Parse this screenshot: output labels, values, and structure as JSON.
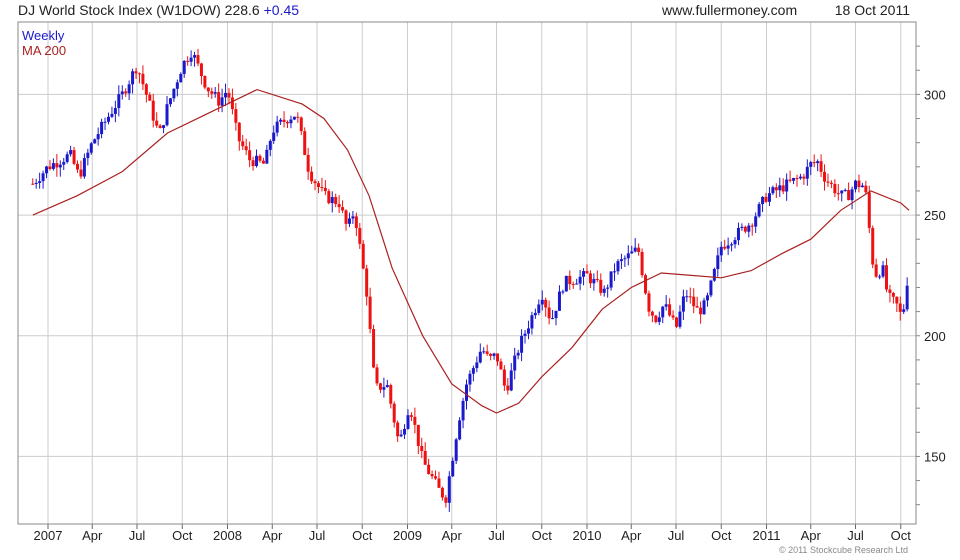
{
  "header": {
    "title": "DJ World Stock Index (W1DOW)",
    "last": "228.6",
    "change": "+0.45",
    "site": "www.fullermoney.com",
    "date": "18 Oct 2011"
  },
  "footer": {
    "copyright": "© 2011 Stockcube Research Ltd"
  },
  "colors": {
    "up": "#1a1acc",
    "down": "#ee1111",
    "ma": "#aa2222",
    "grid": "#cccccc"
  },
  "chart_data": {
    "type": "candlestick",
    "legend": [
      {
        "label": "Weekly",
        "color": "#1a1acc"
      },
      {
        "label": "MA 200",
        "color": "#aa2222"
      }
    ],
    "ylim": [
      122,
      330
    ],
    "y_ticks": [
      150,
      200,
      250,
      300
    ],
    "x_labels": [
      "2007",
      "Apr",
      "Jul",
      "Oct",
      "2008",
      "Apr",
      "Jul",
      "Oct",
      "2009",
      "Apr",
      "Jul",
      "Oct",
      "2010",
      "Apr",
      "Jul",
      "Oct",
      "2011",
      "Apr",
      "Jul",
      "Oct"
    ],
    "grid": true,
    "y_axis_side": "right",
    "series": [
      {
        "name": "Weekly",
        "kind": "ohlc_close_path",
        "x": [
          "2006-12-01",
          "2007-01-01",
          "2007-02-15",
          "2007-03-05",
          "2007-04-01",
          "2007-05-01",
          "2007-06-01",
          "2007-07-01",
          "2007-07-20",
          "2007-08-15",
          "2007-09-01",
          "2007-10-01",
          "2007-10-20",
          "2007-11-20",
          "2007-12-15",
          "2008-01-01",
          "2008-01-22",
          "2008-02-15",
          "2008-03-17",
          "2008-04-01",
          "2008-05-01",
          "2008-05-20",
          "2008-06-15",
          "2008-07-15",
          "2008-08-15",
          "2008-09-01",
          "2008-09-15",
          "2008-10-01",
          "2008-10-10",
          "2008-10-27",
          "2008-11-20",
          "2008-12-15",
          "2009-01-05",
          "2009-02-01",
          "2009-03-09",
          "2009-03-20",
          "2009-04-15",
          "2009-05-01",
          "2009-06-01",
          "2009-06-15",
          "2009-07-01",
          "2009-07-20",
          "2009-08-15",
          "2009-09-15",
          "2009-10-01",
          "2009-10-20",
          "2009-11-15",
          "2010-01-01",
          "2010-02-05",
          "2010-03-01",
          "2010-04-15",
          "2010-05-06",
          "2010-05-20",
          "2010-06-07",
          "2010-07-01",
          "2010-07-20",
          "2010-08-15",
          "2010-08-31",
          "2010-10-01",
          "2010-11-01",
          "2010-12-01",
          "2011-01-01",
          "2011-02-15",
          "2011-03-15",
          "2011-04-01",
          "2011-04-15",
          "2011-05-01",
          "2011-06-01",
          "2011-06-15",
          "2011-07-01",
          "2011-07-20",
          "2011-08-08",
          "2011-08-25",
          "2011-09-05",
          "2011-09-22",
          "2011-10-04",
          "2011-10-18"
        ],
        "close": [
          263,
          270,
          275,
          266,
          280,
          290,
          300,
          312,
          300,
          283,
          295,
          312,
          318,
          303,
          297,
          302,
          282,
          273,
          271,
          285,
          290,
          292,
          268,
          258,
          255,
          244,
          252,
          230,
          218,
          178,
          180,
          155,
          172,
          148,
          135,
          133,
          165,
          180,
          195,
          190,
          192,
          177,
          195,
          210,
          218,
          206,
          222,
          225,
          218,
          229,
          236,
          212,
          207,
          213,
          203,
          218,
          210,
          213,
          237,
          242,
          247,
          258,
          263,
          266,
          271,
          272,
          265,
          258,
          258,
          263,
          262,
          225,
          228,
          216,
          213,
          207,
          229
        ]
      },
      {
        "name": "MA 200",
        "kind": "line",
        "x": [
          "2006-12-01",
          "2007-03-01",
          "2007-06-01",
          "2007-09-01",
          "2007-12-01",
          "2008-03-01",
          "2008-06-01",
          "2008-07-15",
          "2008-09-01",
          "2008-10-15",
          "2008-12-01",
          "2009-02-01",
          "2009-04-01",
          "2009-06-01",
          "2009-07-01",
          "2009-08-15",
          "2009-10-01",
          "2009-12-01",
          "2010-02-01",
          "2010-04-01",
          "2010-06-01",
          "2010-08-01",
          "2010-10-01",
          "2010-12-01",
          "2011-02-01",
          "2011-04-01",
          "2011-06-01",
          "2011-08-01",
          "2011-10-01",
          "2011-10-18"
        ],
        "values": [
          250,
          258,
          268,
          284,
          293,
          302,
          296,
          290,
          277,
          258,
          228,
          200,
          180,
          171,
          168,
          172,
          183,
          195,
          211,
          220,
          226,
          225,
          224,
          227,
          234,
          240,
          252,
          260,
          255,
          252
        ]
      }
    ]
  }
}
